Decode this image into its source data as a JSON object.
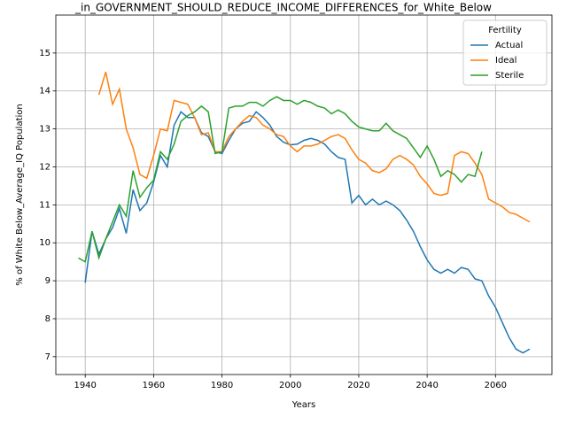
{
  "chart_data": {
    "type": "line",
    "title": "_in_GOVERNMENT_SHOULD_REDUCE_INCOME_DIFFERENCES_for_White_Below",
    "xlabel": "Years",
    "ylabel": "% of White Below_Average_IQ Population",
    "x": [
      1938,
      1940,
      1942,
      1944,
      1946,
      1948,
      1950,
      1952,
      1954,
      1956,
      1958,
      1960,
      1962,
      1964,
      1966,
      1968,
      1970,
      1972,
      1974,
      1976,
      1978,
      1980,
      1982,
      1984,
      1986,
      1988,
      1990,
      1992,
      1994,
      1996,
      1998,
      2000,
      2002,
      2004,
      2006,
      2008,
      2010,
      2012,
      2014,
      2016,
      2018,
      2020,
      2022,
      2024,
      2026,
      2028,
      2030,
      2032,
      2034,
      2036,
      2038,
      2040,
      2042,
      2044,
      2046,
      2048,
      2050,
      2052,
      2054,
      2056,
      2058,
      2060,
      2062,
      2064,
      2066,
      2068,
      2070
    ],
    "series": [
      {
        "name": "Actual",
        "color": "#1f77b4",
        "values": [
          null,
          8.95,
          10.3,
          9.7,
          10.1,
          10.4,
          10.9,
          10.25,
          11.4,
          10.85,
          11.05,
          11.6,
          12.3,
          12.0,
          13.1,
          13.45,
          13.3,
          13.3,
          12.9,
          12.8,
          12.4,
          12.35,
          12.7,
          13.0,
          13.15,
          13.2,
          13.45,
          13.3,
          13.1,
          12.8,
          12.65,
          12.58,
          12.6,
          12.7,
          12.75,
          12.7,
          12.6,
          12.4,
          12.25,
          12.2,
          11.05,
          11.25,
          11.0,
          11.15,
          11.0,
          11.1,
          11.0,
          10.85,
          10.6,
          10.3,
          9.9,
          9.55,
          9.3,
          9.2,
          9.3,
          9.2,
          9.35,
          9.3,
          9.05,
          9.0,
          8.6,
          8.3,
          7.9,
          7.5,
          7.2,
          7.1,
          7.2
        ]
      },
      {
        "name": "Ideal",
        "color": "#ff7f0e",
        "values": [
          null,
          null,
          null,
          13.9,
          14.5,
          13.65,
          14.05,
          13.0,
          12.5,
          11.8,
          11.7,
          12.3,
          13.0,
          12.95,
          13.75,
          13.7,
          13.65,
          13.3,
          12.85,
          12.9,
          12.4,
          12.4,
          12.8,
          13.0,
          13.2,
          13.35,
          13.3,
          13.1,
          13.0,
          12.85,
          12.8,
          12.55,
          12.4,
          12.55,
          12.55,
          12.6,
          12.7,
          12.8,
          12.85,
          12.75,
          12.45,
          12.2,
          12.1,
          11.9,
          11.85,
          11.95,
          12.2,
          12.3,
          12.2,
          12.05,
          11.75,
          11.55,
          11.3,
          11.25,
          11.3,
          12.3,
          12.4,
          12.35,
          12.1,
          11.8,
          11.15,
          11.05,
          10.95,
          10.8,
          10.75,
          10.65,
          10.55
        ]
      },
      {
        "name": "Sterile",
        "color": "#2ca02c",
        "values": [
          9.6,
          9.5,
          10.3,
          9.6,
          10.1,
          10.55,
          11.0,
          10.7,
          11.9,
          11.2,
          11.45,
          11.65,
          12.4,
          12.2,
          12.6,
          13.2,
          13.35,
          13.45,
          13.6,
          13.45,
          12.35,
          12.4,
          13.55,
          13.6,
          13.6,
          13.7,
          13.7,
          13.6,
          13.75,
          13.85,
          13.75,
          13.75,
          13.65,
          13.75,
          13.7,
          13.6,
          13.55,
          13.4,
          13.5,
          13.4,
          13.2,
          13.05,
          13.0,
          12.95,
          12.95,
          13.15,
          12.95,
          12.85,
          12.75,
          12.5,
          12.25,
          12.55,
          12.2,
          11.75,
          11.9,
          11.8,
          11.6,
          11.8,
          11.75,
          12.4,
          null,
          null,
          null,
          null,
          null,
          null,
          null
        ]
      }
    ],
    "xlim": [
      1931.4,
      2076.5
    ],
    "ylim": [
      6.53,
      16.0
    ],
    "xticks": [
      1940,
      1960,
      1980,
      2000,
      2020,
      2040,
      2060
    ],
    "yticks": [
      7,
      8,
      9,
      10,
      11,
      12,
      13,
      14,
      15
    ],
    "grid": true,
    "legend": {
      "title": "Fertility",
      "loc": "upper right"
    }
  }
}
